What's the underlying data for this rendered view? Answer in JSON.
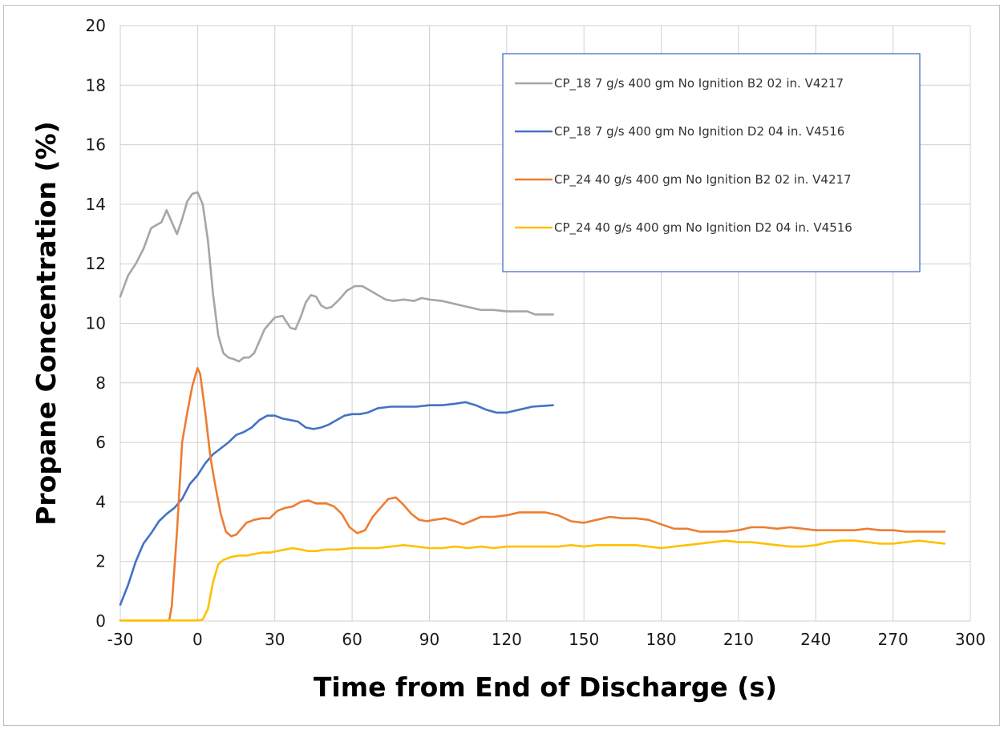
{
  "chart_data": {
    "type": "line",
    "title": "",
    "xlabel": "Time from End of Discharge (s)",
    "ylabel": "Propane Concentration (%)",
    "xlim": [
      -30,
      300
    ],
    "ylim": [
      0,
      20
    ],
    "x_ticks": [
      -30,
      0,
      30,
      60,
      90,
      120,
      150,
      180,
      210,
      240,
      270,
      300
    ],
    "y_ticks": [
      0,
      2,
      4,
      6,
      8,
      10,
      12,
      14,
      16,
      18,
      20
    ],
    "x_tick_labels": [
      "-30",
      "0",
      "30",
      "60",
      "90",
      "120",
      "150",
      "180",
      "210",
      "240",
      "270",
      "300"
    ],
    "y_tick_labels": [
      "0",
      "2",
      "4",
      "6",
      "8",
      "10",
      "12",
      "14",
      "16",
      "18",
      "20"
    ],
    "grid": true,
    "legend_position": "top-right",
    "series": [
      {
        "name": "CP_18 7 g/s 400 gm No Ignition B2 02 in. V4217",
        "color": "#a6a6a6",
        "points": [
          [
            -30,
            10.9
          ],
          [
            -27,
            11.6
          ],
          [
            -24,
            12.0
          ],
          [
            -21,
            12.5
          ],
          [
            -18,
            13.2
          ],
          [
            -16,
            13.3
          ],
          [
            -14,
            13.4
          ],
          [
            -12,
            13.8
          ],
          [
            -10,
            13.4
          ],
          [
            -8,
            13.0
          ],
          [
            -6,
            13.5
          ],
          [
            -4,
            14.1
          ],
          [
            -2,
            14.35
          ],
          [
            0,
            14.4
          ],
          [
            2,
            14.0
          ],
          [
            4,
            12.8
          ],
          [
            6,
            11.0
          ],
          [
            8,
            9.6
          ],
          [
            10,
            9.0
          ],
          [
            12,
            8.85
          ],
          [
            14,
            8.8
          ],
          [
            16,
            8.72
          ],
          [
            18,
            8.85
          ],
          [
            20,
            8.85
          ],
          [
            22,
            9.0
          ],
          [
            24,
            9.4
          ],
          [
            26,
            9.8
          ],
          [
            28,
            10.0
          ],
          [
            30,
            10.2
          ],
          [
            33,
            10.25
          ],
          [
            36,
            9.85
          ],
          [
            38,
            9.8
          ],
          [
            40,
            10.2
          ],
          [
            42,
            10.7
          ],
          [
            44,
            10.95
          ],
          [
            46,
            10.9
          ],
          [
            48,
            10.6
          ],
          [
            50,
            10.5
          ],
          [
            52,
            10.55
          ],
          [
            55,
            10.8
          ],
          [
            58,
            11.1
          ],
          [
            61,
            11.25
          ],
          [
            64,
            11.25
          ],
          [
            67,
            11.1
          ],
          [
            70,
            10.95
          ],
          [
            73,
            10.8
          ],
          [
            76,
            10.75
          ],
          [
            80,
            10.8
          ],
          [
            84,
            10.75
          ],
          [
            87,
            10.85
          ],
          [
            90,
            10.8
          ],
          [
            95,
            10.75
          ],
          [
            100,
            10.65
          ],
          [
            105,
            10.55
          ],
          [
            110,
            10.45
          ],
          [
            115,
            10.45
          ],
          [
            120,
            10.4
          ],
          [
            125,
            10.4
          ],
          [
            128,
            10.4
          ],
          [
            131,
            10.3
          ],
          [
            134,
            10.3
          ],
          [
            138,
            10.3
          ]
        ]
      },
      {
        "name": "CP_18 7 g/s 400 gm No Ignition D2 04 in. V4516",
        "color": "#4472c4",
        "points": [
          [
            -30,
            0.55
          ],
          [
            -27,
            1.2
          ],
          [
            -24,
            2.0
          ],
          [
            -21,
            2.6
          ],
          [
            -18,
            2.95
          ],
          [
            -15,
            3.35
          ],
          [
            -12,
            3.6
          ],
          [
            -9,
            3.8
          ],
          [
            -6,
            4.1
          ],
          [
            -3,
            4.6
          ],
          [
            0,
            4.9
          ],
          [
            3,
            5.3
          ],
          [
            6,
            5.6
          ],
          [
            9,
            5.8
          ],
          [
            12,
            6.0
          ],
          [
            15,
            6.25
          ],
          [
            18,
            6.35
          ],
          [
            21,
            6.5
          ],
          [
            24,
            6.75
          ],
          [
            27,
            6.9
          ],
          [
            30,
            6.9
          ],
          [
            33,
            6.8
          ],
          [
            36,
            6.75
          ],
          [
            39,
            6.7
          ],
          [
            42,
            6.5
          ],
          [
            45,
            6.45
          ],
          [
            48,
            6.5
          ],
          [
            51,
            6.6
          ],
          [
            54,
            6.75
          ],
          [
            57,
            6.9
          ],
          [
            60,
            6.95
          ],
          [
            63,
            6.95
          ],
          [
            66,
            7.0
          ],
          [
            70,
            7.15
          ],
          [
            75,
            7.2
          ],
          [
            80,
            7.2
          ],
          [
            85,
            7.2
          ],
          [
            90,
            7.25
          ],
          [
            95,
            7.25
          ],
          [
            100,
            7.3
          ],
          [
            104,
            7.35
          ],
          [
            108,
            7.25
          ],
          [
            112,
            7.1
          ],
          [
            116,
            7.0
          ],
          [
            120,
            7.0
          ],
          [
            125,
            7.1
          ],
          [
            130,
            7.2
          ],
          [
            138,
            7.25
          ]
        ]
      },
      {
        "name": "CP_24 40 g/s 400 gm No Ignition B2 02 in. V4217",
        "color": "#ed7d31",
        "points": [
          [
            -30,
            0.02
          ],
          [
            -20,
            0.02
          ],
          [
            -11,
            0.02
          ],
          [
            -10,
            0.5
          ],
          [
            -8,
            3.0
          ],
          [
            -6,
            6.0
          ],
          [
            -4,
            7.0
          ],
          [
            -2,
            7.9
          ],
          [
            0,
            8.5
          ],
          [
            1,
            8.3
          ],
          [
            3,
            7.0
          ],
          [
            5,
            5.5
          ],
          [
            7,
            4.5
          ],
          [
            9,
            3.6
          ],
          [
            11,
            3.0
          ],
          [
            13,
            2.85
          ],
          [
            15,
            2.9
          ],
          [
            17,
            3.1
          ],
          [
            19,
            3.3
          ],
          [
            22,
            3.4
          ],
          [
            25,
            3.45
          ],
          [
            28,
            3.45
          ],
          [
            31,
            3.7
          ],
          [
            34,
            3.8
          ],
          [
            37,
            3.85
          ],
          [
            40,
            4.0
          ],
          [
            43,
            4.05
          ],
          [
            46,
            3.95
          ],
          [
            50,
            3.95
          ],
          [
            53,
            3.85
          ],
          [
            56,
            3.6
          ],
          [
            59,
            3.15
          ],
          [
            62,
            2.95
          ],
          [
            65,
            3.05
          ],
          [
            68,
            3.5
          ],
          [
            71,
            3.8
          ],
          [
            74,
            4.1
          ],
          [
            77,
            4.15
          ],
          [
            80,
            3.9
          ],
          [
            83,
            3.6
          ],
          [
            86,
            3.4
          ],
          [
            89,
            3.35
          ],
          [
            92,
            3.4
          ],
          [
            96,
            3.45
          ],
          [
            100,
            3.35
          ],
          [
            103,
            3.25
          ],
          [
            106,
            3.35
          ],
          [
            110,
            3.5
          ],
          [
            115,
            3.5
          ],
          [
            120,
            3.55
          ],
          [
            125,
            3.65
          ],
          [
            130,
            3.65
          ],
          [
            135,
            3.65
          ],
          [
            140,
            3.55
          ],
          [
            145,
            3.35
          ],
          [
            150,
            3.3
          ],
          [
            155,
            3.4
          ],
          [
            160,
            3.5
          ],
          [
            165,
            3.45
          ],
          [
            170,
            3.45
          ],
          [
            175,
            3.4
          ],
          [
            180,
            3.25
          ],
          [
            185,
            3.1
          ],
          [
            190,
            3.1
          ],
          [
            195,
            3.0
          ],
          [
            200,
            3.0
          ],
          [
            205,
            3.0
          ],
          [
            210,
            3.05
          ],
          [
            215,
            3.15
          ],
          [
            220,
            3.15
          ],
          [
            225,
            3.1
          ],
          [
            230,
            3.15
          ],
          [
            235,
            3.1
          ],
          [
            240,
            3.05
          ],
          [
            245,
            3.05
          ],
          [
            250,
            3.05
          ],
          [
            255,
            3.05
          ],
          [
            260,
            3.1
          ],
          [
            265,
            3.05
          ],
          [
            270,
            3.05
          ],
          [
            275,
            3.0
          ],
          [
            280,
            3.0
          ],
          [
            285,
            3.0
          ],
          [
            290,
            3.0
          ]
        ]
      },
      {
        "name": "CP_24 40 g/s 400 gm No Ignition D2 04 in. V4516",
        "color": "#ffc000",
        "points": [
          [
            -30,
            0.02
          ],
          [
            -10,
            0.02
          ],
          [
            0,
            0.02
          ],
          [
            2,
            0.05
          ],
          [
            4,
            0.4
          ],
          [
            6,
            1.3
          ],
          [
            8,
            1.9
          ],
          [
            10,
            2.05
          ],
          [
            13,
            2.15
          ],
          [
            16,
            2.2
          ],
          [
            19,
            2.2
          ],
          [
            22,
            2.25
          ],
          [
            25,
            2.3
          ],
          [
            28,
            2.3
          ],
          [
            31,
            2.35
          ],
          [
            34,
            2.4
          ],
          [
            37,
            2.45
          ],
          [
            40,
            2.4
          ],
          [
            43,
            2.35
          ],
          [
            46,
            2.35
          ],
          [
            50,
            2.4
          ],
          [
            55,
            2.4
          ],
          [
            60,
            2.45
          ],
          [
            65,
            2.45
          ],
          [
            70,
            2.45
          ],
          [
            75,
            2.5
          ],
          [
            80,
            2.55
          ],
          [
            85,
            2.5
          ],
          [
            90,
            2.45
          ],
          [
            95,
            2.45
          ],
          [
            100,
            2.5
          ],
          [
            105,
            2.45
          ],
          [
            110,
            2.5
          ],
          [
            115,
            2.45
          ],
          [
            120,
            2.5
          ],
          [
            125,
            2.5
          ],
          [
            130,
            2.5
          ],
          [
            135,
            2.5
          ],
          [
            140,
            2.5
          ],
          [
            145,
            2.55
          ],
          [
            150,
            2.5
          ],
          [
            155,
            2.55
          ],
          [
            160,
            2.55
          ],
          [
            165,
            2.55
          ],
          [
            170,
            2.55
          ],
          [
            175,
            2.5
          ],
          [
            180,
            2.45
          ],
          [
            185,
            2.5
          ],
          [
            190,
            2.55
          ],
          [
            195,
            2.6
          ],
          [
            200,
            2.65
          ],
          [
            205,
            2.7
          ],
          [
            210,
            2.65
          ],
          [
            215,
            2.65
          ],
          [
            220,
            2.6
          ],
          [
            225,
            2.55
          ],
          [
            230,
            2.5
          ],
          [
            235,
            2.5
          ],
          [
            240,
            2.55
          ],
          [
            245,
            2.65
          ],
          [
            250,
            2.7
          ],
          [
            255,
            2.7
          ],
          [
            260,
            2.65
          ],
          [
            265,
            2.6
          ],
          [
            270,
            2.6
          ],
          [
            275,
            2.65
          ],
          [
            280,
            2.7
          ],
          [
            285,
            2.65
          ],
          [
            290,
            2.6
          ]
        ]
      }
    ]
  }
}
